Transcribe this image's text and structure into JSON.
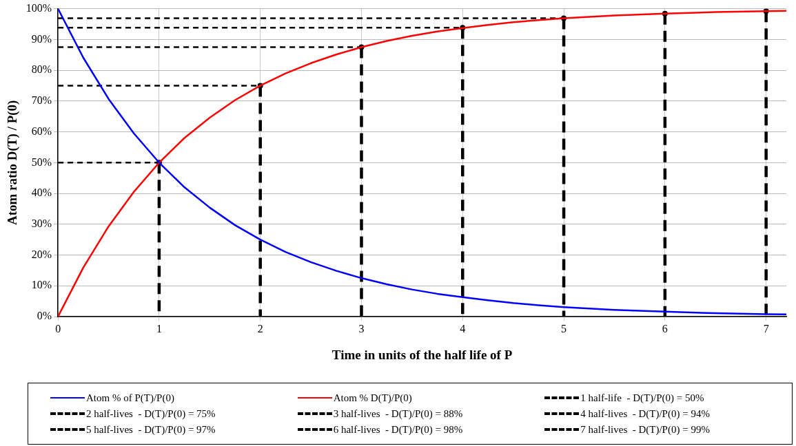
{
  "chart_data": {
    "type": "line",
    "xlabel": "Time in units of the half life of P",
    "ylabel": "Atom ratio D(T) / P(0)",
    "xlim": [
      0,
      7.2
    ],
    "xticks": [
      0,
      1,
      2,
      3,
      4,
      5,
      6,
      7
    ],
    "ylim": [
      0,
      100
    ],
    "yticks": [
      {
        "value": 0,
        "label": "0%"
      },
      {
        "value": 10,
        "label": "10%"
      },
      {
        "value": 20,
        "label": "20%"
      },
      {
        "value": 30,
        "label": "30%"
      },
      {
        "value": 40,
        "label": "40%"
      },
      {
        "value": 50,
        "label": "50%"
      },
      {
        "value": 60,
        "label": "60%"
      },
      {
        "value": 70,
        "label": "70%"
      },
      {
        "value": 80,
        "label": "80%"
      },
      {
        "value": 90,
        "label": "90%"
      },
      {
        "value": 100,
        "label": "100%"
      }
    ],
    "grid": true,
    "legend": "bottom",
    "line_style": "solid",
    "series": [
      {
        "name": "Atom % of P(T)/P(0)",
        "color": "#0000ff",
        "marker": "none",
        "x": [
          0,
          0.25,
          0.5,
          0.75,
          1,
          1.25,
          1.5,
          1.75,
          2,
          2.25,
          2.5,
          2.75,
          3,
          3.25,
          3.5,
          3.75,
          4,
          4.25,
          4.5,
          4.75,
          5,
          5.5,
          6,
          6.5,
          7,
          7.2
        ],
        "values": [
          100,
          84.1,
          70.7,
          59.5,
          50,
          42.0,
          35.4,
          29.7,
          25,
          21.0,
          17.7,
          14.9,
          12.5,
          10.5,
          8.8,
          7.4,
          6.3,
          5.3,
          4.4,
          3.7,
          3.1,
          2.2,
          1.6,
          1.1,
          0.8,
          0.7
        ]
      },
      {
        "name": "Atom % D(T)/P(0)",
        "color": "#ff0000",
        "marker": "none",
        "x": [
          0,
          0.25,
          0.5,
          0.75,
          1,
          1.25,
          1.5,
          1.75,
          2,
          2.25,
          2.5,
          2.75,
          3,
          3.25,
          3.5,
          3.75,
          4,
          4.25,
          4.5,
          4.75,
          5,
          5.5,
          6,
          6.5,
          7,
          7.2
        ],
        "values": [
          0,
          15.9,
          29.3,
          40.5,
          50,
          58.0,
          64.6,
          70.3,
          75,
          79.0,
          82.3,
          85.1,
          87.5,
          89.5,
          91.2,
          92.6,
          93.7,
          94.7,
          95.6,
          96.3,
          96.9,
          97.8,
          98.4,
          98.9,
          99.2,
          99.3
        ]
      },
      {
        "name": "1 half-life  - D(T)/P(0) = 50%",
        "type": "lollipop",
        "marker": "circle",
        "color": "#000000",
        "line_style": "dashed",
        "x": [
          1
        ],
        "values": [
          50
        ]
      },
      {
        "name": "2 half-lives  - D(T)/P(0) = 75%",
        "type": "lollipop",
        "marker": "circle",
        "color": "#000000",
        "line_style": "dashed",
        "x": [
          2
        ],
        "values": [
          75
        ]
      },
      {
        "name": "3 half-lives  - D(T)/P(0) = 88%",
        "type": "lollipop",
        "marker": "circle",
        "color": "#000000",
        "line_style": "dashed",
        "x": [
          3
        ],
        "values": [
          87.5
        ]
      },
      {
        "name": "4 half-lives  - D(T)/P(0) = 94%",
        "type": "lollipop",
        "marker": "circle",
        "color": "#000000",
        "line_style": "dashed",
        "x": [
          4
        ],
        "values": [
          93.8
        ]
      },
      {
        "name": "5 half-lives  - D(T)/P(0) = 97%",
        "type": "lollipop",
        "marker": "circle",
        "color": "#000000",
        "line_style": "dashed",
        "x": [
          5
        ],
        "values": [
          96.9
        ]
      },
      {
        "name": "6 half-lives  - D(T)/P(0) = 98%",
        "type": "lollipop",
        "marker": "circle",
        "color": "#000000",
        "line_style": "dashed",
        "x": [
          6
        ],
        "values": [
          98.4
        ]
      },
      {
        "name": "7 half-lives  - D(T)/P(0) = 99%",
        "type": "lollipop",
        "marker": "circle",
        "color": "#000000",
        "line_style": "dashed",
        "x": [
          7
        ],
        "values": [
          99.2
        ]
      },
      {
        "color": "#000000",
        "marker": "none",
        "line_style": "dashed",
        "x": [
          0,
          1
        ],
        "values": [
          50,
          50
        ]
      },
      {
        "color": "#000000",
        "marker": "none",
        "line_style": "dashed",
        "x": [
          0,
          2
        ],
        "values": [
          75,
          75
        ]
      },
      {
        "color": "#000000",
        "marker": "none",
        "line_style": "dashed",
        "x": [
          0,
          3
        ],
        "values": [
          87.5,
          87.5
        ]
      },
      {
        "color": "#000000",
        "marker": "none",
        "line_style": "dashed",
        "x": [
          0,
          4
        ],
        "values": [
          93.8,
          93.8
        ]
      },
      {
        "color": "#000000",
        "marker": "none",
        "line_style": "dashed",
        "x": [
          0,
          5
        ],
        "values": [
          96.9,
          96.9
        ]
      }
    ]
  }
}
